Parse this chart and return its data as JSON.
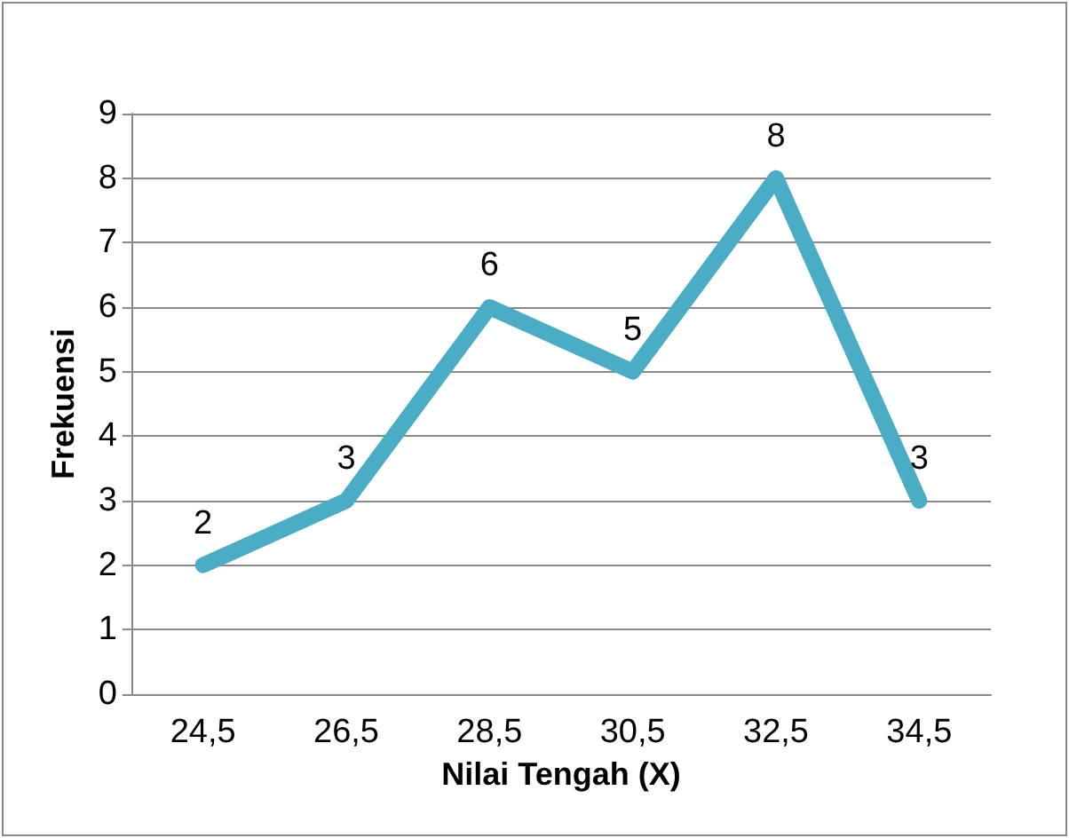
{
  "chart_data": {
    "type": "line",
    "xlabel": "Nilai Tengah (X)",
    "ylabel": "Frekuensi",
    "categories": [
      "24,5",
      "26,5",
      "28,5",
      "30,5",
      "32,5",
      "34,5"
    ],
    "series": [
      {
        "color": "#4bacc6",
        "values": [
          2,
          3,
          6,
          5,
          8,
          3
        ]
      }
    ],
    "ylim": [
      0,
      9
    ],
    "yticks": [
      0,
      1,
      2,
      3,
      4,
      5,
      6,
      7,
      8,
      9
    ],
    "grid": "y",
    "marker": "none",
    "line_style": "solid",
    "data_labels": true
  }
}
